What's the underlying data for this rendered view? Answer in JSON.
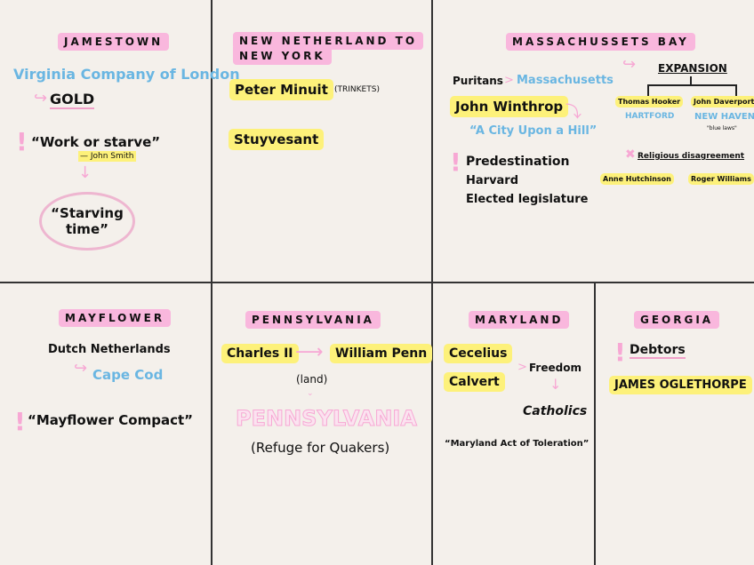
{
  "jamestown": {
    "title": "JAMESTOWN",
    "company": "Virginia Company of London",
    "gold": "GOLD",
    "quote": "“Work or starve”",
    "attribution": "— John Smith",
    "starving": "“Starving time”"
  },
  "new_netherland": {
    "title_1": "NEW NETHERLAND TO",
    "title_2": "NEW YORK",
    "minuit": "Peter Minuit",
    "trinkets": "(TRINKETS)",
    "stuyvesant": "Stuyvesant"
  },
  "massachusetts": {
    "title": "MASSACHUSSETS BAY",
    "puritans": "Puritans",
    "gt": ">",
    "mass": "Massachusetts",
    "winthrop": "John Winthrop",
    "city": "“A City Upon a Hill”",
    "points": [
      "Predestination",
      "Harvard",
      "Elected legislature"
    ],
    "expansion": "EXPANSION",
    "hooker": "Thomas Hooker",
    "hartford": "HARTFORD",
    "davenport": "John Daverport",
    "new_haven": "NEW HAVEN",
    "blue_laws": "\"blue laws\"",
    "religious": "Religious disagreement",
    "hutchinson": "Anne Hutchinson",
    "williams": "Roger Williams"
  },
  "mayflower": {
    "title": "MAYFLOWER",
    "dutch": "Dutch Netherlands",
    "cape": "Cape Cod",
    "compact": "“Mayflower Compact”"
  },
  "pennsylvania": {
    "title": "PENNSYLVANIA",
    "charles": "Charles II",
    "penn": "William Penn",
    "land": "(land)",
    "big": "PENNSYLVANIA",
    "refuge": "(Refuge for Quakers)"
  },
  "maryland": {
    "title": "MARYLAND",
    "cecelius": "Cecelius",
    "calvert": "Calvert",
    "freedom": "Freedom",
    "gt": ">",
    "catholics": "Catholics",
    "act": "“Maryland Act of Toleration”"
  },
  "georgia": {
    "title": "GEORGIA",
    "debtors": "Debtors",
    "oglethorpe": "JAMES OGLETHORPE"
  },
  "colors": {
    "label_pink": "#f9b7dd",
    "highlight_yellow": "#fdf17a",
    "accent_blue": "#6ab6e2"
  }
}
